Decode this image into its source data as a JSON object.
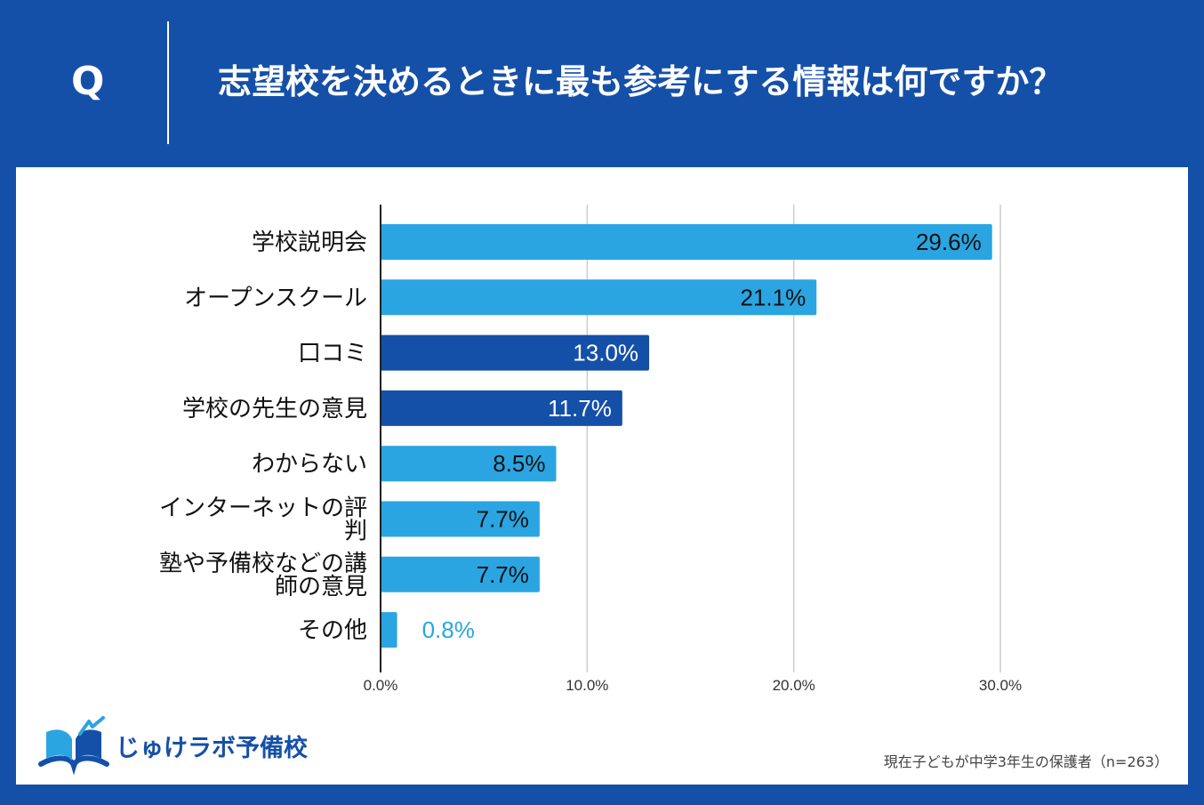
{
  "header": {
    "q_label": "Q",
    "question": "志望校を決めるときに最も参考にする情報は何ですか？"
  },
  "colors": {
    "background": "#1550a8",
    "bar_light": "#2aa5e2",
    "bar_dark": "#1550a8",
    "panel": "#ffffff"
  },
  "chart_data": {
    "type": "bar",
    "orientation": "horizontal",
    "title": "志望校を決めるときに最も参考にする情報は何ですか？",
    "xlabel": "",
    "ylabel": "",
    "xlim": [
      0,
      30
    ],
    "ticks": [
      0,
      10,
      20,
      30
    ],
    "tick_labels": [
      "0.0%",
      "10.0%",
      "20.0%",
      "30.0%"
    ],
    "grid": true,
    "categories": [
      [
        "学校説明会"
      ],
      [
        "オープンスクール"
      ],
      [
        "口コミ"
      ],
      [
        "学校の先生の意見"
      ],
      [
        "わからない"
      ],
      [
        "インターネットの評",
        "判"
      ],
      [
        "塾や予備校などの講",
        "師の意見"
      ],
      [
        "その他"
      ]
    ],
    "values": [
      29.6,
      21.1,
      13.0,
      11.7,
      8.5,
      7.7,
      7.7,
      0.8
    ],
    "value_labels": [
      "29.6%",
      "21.1%",
      "13.0%",
      "11.7%",
      "8.5%",
      "7.7%",
      "7.7%",
      "0.8%"
    ],
    "highlight": [
      false,
      false,
      true,
      true,
      false,
      false,
      false,
      false
    ]
  },
  "brand": {
    "name": "じゅけラボ予備校",
    "logo_icon": "open-book-icon"
  },
  "footnote": "現在子どもが中学3年生の保護者（n=263）"
}
